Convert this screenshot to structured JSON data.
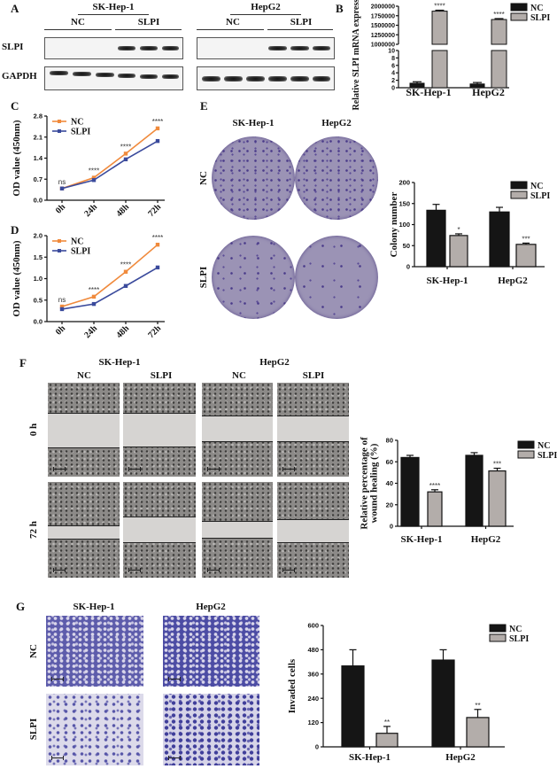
{
  "panel_a": {
    "label": "A",
    "blots": [
      {
        "cell_line": "SK-Hep-1",
        "conditions": [
          "NC",
          "SLPI"
        ]
      },
      {
        "cell_line": "HepG2",
        "conditions": [
          "NC",
          "SLPI"
        ]
      }
    ],
    "rows": [
      "SLPI",
      "GAPDH"
    ]
  },
  "panel_labels": {
    "b": "B",
    "c": "C",
    "d": "D",
    "e": "E",
    "f": "F",
    "g": "G"
  },
  "panel_e": {
    "columns": [
      "SK-Hep-1",
      "HepG2"
    ],
    "rows": [
      "NC",
      "SLPI"
    ]
  },
  "panel_f": {
    "cell_lines": [
      "SK-Hep-1",
      "HepG2"
    ],
    "conditions": [
      "NC",
      "SLPI",
      "NC",
      "SLPI"
    ],
    "rows": [
      "0 h",
      "72 h"
    ]
  },
  "panel_g": {
    "columns": [
      "SK-Hep-1",
      "HepG2"
    ],
    "rows": [
      "NC",
      "SLPI"
    ]
  },
  "colors": {
    "nc_line": "#f08a3c",
    "slpi_line": "#3a4a9c",
    "nc_bar": "#151515",
    "slpi_bar": "#b3adaa"
  },
  "chart_data": [
    {
      "panel": "B",
      "type": "bar",
      "broken_axis": true,
      "categories": [
        "SK-Hep-1",
        "HepG2"
      ],
      "series": [
        {
          "name": "NC",
          "values": [
            1.2,
            1.0
          ],
          "errors": [
            0.4,
            0.4
          ]
        },
        {
          "name": "SLPI",
          "values": [
            1870000,
            1650000
          ],
          "errors": [
            25000,
            25000
          ]
        }
      ],
      "significance": [
        "****",
        "****"
      ],
      "ylabel": "Relative SLPI mRNA expression",
      "yticks_lower": [
        "0",
        "2",
        "4",
        "6",
        "8",
        "10"
      ],
      "yticks_upper": [
        "1000000",
        "1250000",
        "1500000",
        "1750000",
        "2000000"
      ],
      "ylim_lower": [
        0,
        10
      ],
      "ylim_upper": [
        1000000,
        2000000
      ],
      "legend": "top-right"
    },
    {
      "panel": "C",
      "type": "line",
      "x": [
        "0h",
        "24h",
        "48h",
        "72h"
      ],
      "series": [
        {
          "name": "NC",
          "values": [
            0.39,
            0.75,
            1.55,
            2.39
          ]
        },
        {
          "name": "SLPI",
          "values": [
            0.39,
            0.67,
            1.36,
            1.97
          ]
        }
      ],
      "significance": [
        "ns",
        "****",
        "****",
        "****"
      ],
      "ylabel": "OD value (450nm)",
      "ylim": [
        0,
        2.8
      ],
      "yticks": [
        "0.0",
        "0.7",
        "1.4",
        "2.1",
        "2.8"
      ],
      "legend": "top-left"
    },
    {
      "panel": "D",
      "type": "line",
      "x": [
        "0h",
        "24h",
        "48h",
        "72h"
      ],
      "series": [
        {
          "name": "NC",
          "values": [
            0.35,
            0.58,
            1.16,
            1.79
          ]
        },
        {
          "name": "SLPI",
          "values": [
            0.29,
            0.41,
            0.83,
            1.26
          ]
        }
      ],
      "significance": [
        "ns",
        "****",
        "****",
        "****"
      ],
      "ylabel": "OD value (450nm)",
      "ylim": [
        0,
        2.0
      ],
      "yticks": [
        "0.0",
        "0.5",
        "1.0",
        "1.5",
        "2.0"
      ],
      "legend": "top-left"
    },
    {
      "panel": "E",
      "type": "bar",
      "categories": [
        "SK-Hep-1",
        "HepG2"
      ],
      "series": [
        {
          "name": "NC",
          "values": [
            134,
            130
          ],
          "errors": [
            14,
            11
          ]
        },
        {
          "name": "SLPI",
          "values": [
            74,
            53
          ],
          "errors": [
            4,
            3
          ]
        }
      ],
      "significance": [
        "*",
        "***"
      ],
      "ylabel": "Colony number",
      "ylim": [
        0,
        200
      ],
      "yticks": [
        "0",
        "50",
        "100",
        "150",
        "200"
      ],
      "legend": "top-right"
    },
    {
      "panel": "F",
      "type": "bar",
      "categories": [
        "SK-Hep-1",
        "HepG2"
      ],
      "series": [
        {
          "name": "NC",
          "values": [
            64,
            66
          ],
          "errors": [
            2,
            2.5
          ]
        },
        {
          "name": "SLPI",
          "values": [
            32,
            51.5
          ],
          "errors": [
            2,
            2.5
          ]
        }
      ],
      "significance": [
        "****",
        "***"
      ],
      "ylabel": "Relative percentage of wound healing (%)",
      "ylabel_lines": [
        "Relative percentage of",
        "wound healing (%)"
      ],
      "ylim": [
        0,
        80
      ],
      "yticks": [
        "0",
        "20",
        "40",
        "60",
        "80"
      ],
      "legend": "top-right"
    },
    {
      "panel": "G",
      "type": "bar",
      "categories": [
        "SK-Hep-1",
        "HepG2"
      ],
      "series": [
        {
          "name": "NC",
          "values": [
            400,
            429
          ],
          "errors": [
            80,
            51
          ]
        },
        {
          "name": "SLPI",
          "values": [
            67,
            145
          ],
          "errors": [
            34,
            40
          ]
        }
      ],
      "significance": [
        "**",
        "**"
      ],
      "ylabel": "Invaded cells",
      "ylim": [
        0,
        600
      ],
      "yticks": [
        "0",
        "120",
        "240",
        "360",
        "480",
        "600"
      ],
      "legend": "top-right"
    }
  ]
}
